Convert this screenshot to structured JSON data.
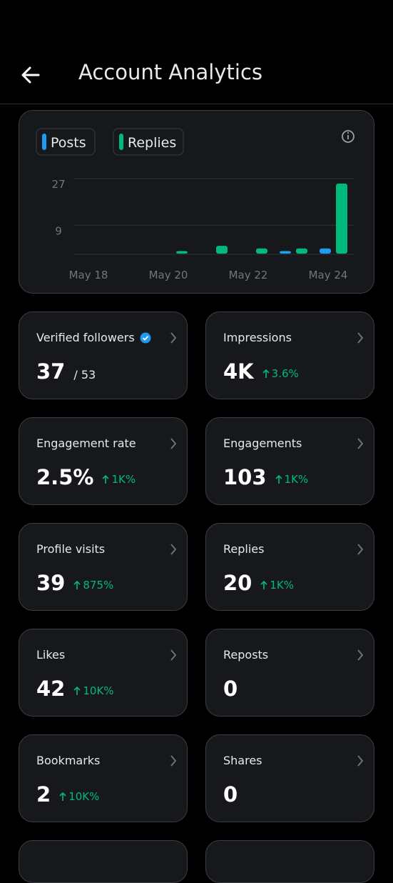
{
  "header": {
    "title": "Account Analytics"
  },
  "chart_data": {
    "type": "bar",
    "categories": [
      "May 18",
      null,
      "May 20",
      null,
      "May 22",
      null,
      "May 24"
    ],
    "series": [
      {
        "name": "Posts",
        "color": "#1d9bf0",
        "values": [
          0,
          0,
          0,
          0,
          0,
          1,
          2
        ]
      },
      {
        "name": "Replies",
        "color": "#00ba7c",
        "values": [
          0,
          0,
          1,
          3,
          2,
          2,
          27
        ]
      }
    ],
    "ylim": [
      0,
      27
    ],
    "yticks": [
      9,
      27
    ],
    "grid": true
  },
  "cards": [
    {
      "title": "Verified followers",
      "value": "37",
      "total": "/ 53",
      "verified": true
    },
    {
      "title": "Impressions",
      "value": "4K",
      "change": "3.6%"
    },
    {
      "title": "Engagement rate",
      "value": "2.5%",
      "change": "1K%"
    },
    {
      "title": "Engagements",
      "value": "103",
      "change": "1K%"
    },
    {
      "title": "Profile visits",
      "value": "39",
      "change": "875%"
    },
    {
      "title": "Replies",
      "value": "20",
      "change": "1K%"
    },
    {
      "title": "Likes",
      "value": "42",
      "change": "10K%"
    },
    {
      "title": "Reposts",
      "value": "0"
    },
    {
      "title": "Bookmarks",
      "value": "2",
      "change": "10K%"
    },
    {
      "title": "Shares",
      "value": "0"
    }
  ]
}
